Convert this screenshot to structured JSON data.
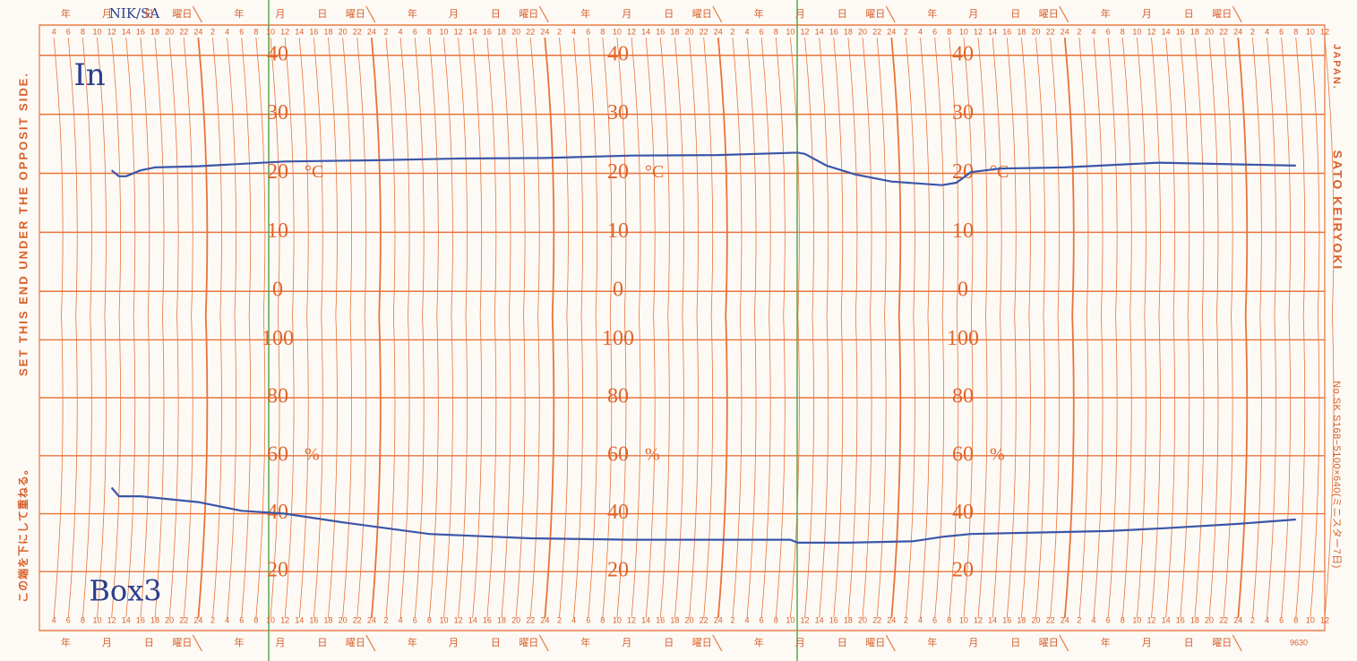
{
  "chart_data": [
    {
      "type": "line",
      "unit": "°C",
      "color": "#3b56a8",
      "ylim": [
        -3,
        43
      ],
      "yticks": [
        0,
        10,
        20,
        30,
        40
      ],
      "xlim": [
        2,
        180
      ],
      "xticks": [
        4,
        6,
        8,
        10,
        12,
        14,
        16,
        18,
        20,
        22,
        24,
        {
          "value": 26,
          "label": "2"
        },
        {
          "value": 28,
          "label": "4"
        },
        {
          "value": 30,
          "label": "6"
        },
        {
          "value": 32,
          "label": "8"
        },
        {
          "value": 34,
          "label": "10"
        },
        {
          "value": 36,
          "label": "12"
        },
        {
          "value": 38,
          "label": "14"
        },
        {
          "value": 40,
          "label": "16"
        },
        {
          "value": 42,
          "label": "18"
        },
        {
          "value": 44,
          "label": "20"
        },
        {
          "value": 46,
          "label": "22"
        },
        {
          "value": 48,
          "label": "24"
        },
        {
          "value": 50,
          "label": "2"
        },
        {
          "value": 52,
          "label": "4"
        },
        {
          "value": 54,
          "label": "6"
        },
        {
          "value": 56,
          "label": "8"
        },
        {
          "value": 58,
          "label": "10"
        },
        {
          "value": 60,
          "label": "12"
        },
        {
          "value": 62,
          "label": "14"
        },
        {
          "value": 64,
          "label": "16"
        },
        {
          "value": 66,
          "label": "18"
        },
        {
          "value": 68,
          "label": "20"
        },
        {
          "value": 70,
          "label": "22"
        },
        {
          "value": 72,
          "label": "24"
        },
        {
          "value": 74,
          "label": "2"
        },
        {
          "value": 76,
          "label": "4"
        },
        {
          "value": 78,
          "label": "6"
        },
        {
          "value": 80,
          "label": "8"
        },
        {
          "value": 82,
          "label": "10"
        },
        {
          "value": 84,
          "label": "12"
        },
        {
          "value": 86,
          "label": "14"
        },
        {
          "value": 88,
          "label": "16"
        },
        {
          "value": 90,
          "label": "18"
        },
        {
          "value": 92,
          "label": "20"
        },
        {
          "value": 94,
          "label": "22"
        },
        {
          "value": 96,
          "label": "24"
        },
        {
          "value": 98,
          "label": "2"
        },
        {
          "value": 100,
          "label": "4"
        },
        {
          "value": 102,
          "label": "6"
        },
        {
          "value": 104,
          "label": "8"
        },
        {
          "value": 106,
          "label": "10"
        },
        {
          "value": 108,
          "label": "12"
        },
        {
          "value": 110,
          "label": "14"
        },
        {
          "value": 112,
          "label": "16"
        },
        {
          "value": 114,
          "label": "18"
        },
        {
          "value": 116,
          "label": "20"
        },
        {
          "value": 118,
          "label": "22"
        },
        {
          "value": 120,
          "label": "24"
        },
        {
          "value": 122,
          "label": "2"
        },
        {
          "value": 124,
          "label": "4"
        },
        {
          "value": 126,
          "label": "6"
        },
        {
          "value": 128,
          "label": "8"
        },
        {
          "value": 130,
          "label": "10"
        },
        {
          "value": 132,
          "label": "12"
        },
        {
          "value": 134,
          "label": "14"
        },
        {
          "value": 136,
          "label": "16"
        },
        {
          "value": 138,
          "label": "18"
        },
        {
          "value": 140,
          "label": "20"
        },
        {
          "value": 142,
          "label": "22"
        },
        {
          "value": 144,
          "label": "24"
        },
        {
          "value": 146,
          "label": "2"
        },
        {
          "value": 148,
          "label": "4"
        },
        {
          "value": 150,
          "label": "6"
        },
        {
          "value": 152,
          "label": "8"
        },
        {
          "value": 154,
          "label": "10"
        },
        {
          "value": 156,
          "label": "12"
        },
        {
          "value": 158,
          "label": "14"
        },
        {
          "value": 160,
          "label": "16"
        },
        {
          "value": 162,
          "label": "18"
        },
        {
          "value": 164,
          "label": "20"
        },
        {
          "value": 166,
          "label": "22"
        },
        {
          "value": 168,
          "label": "24"
        },
        {
          "value": 170,
          "label": "2"
        },
        {
          "value": 172,
          "label": "4"
        },
        {
          "value": 174,
          "label": "6"
        },
        {
          "value": 176,
          "label": "8"
        },
        {
          "value": 178,
          "label": "10"
        },
        {
          "value": 180,
          "label": "12"
        }
      ],
      "x": [
        12,
        13,
        14,
        16,
        18,
        24,
        36,
        48,
        60,
        72,
        84,
        96,
        107,
        108,
        111,
        115,
        120,
        127,
        129,
        131,
        135,
        144,
        157,
        165,
        176
      ],
      "values": [
        20.5,
        19.5,
        19.5,
        20.5,
        21,
        21.2,
        22,
        22.2,
        22.5,
        22.6,
        23,
        23.1,
        23.5,
        23.3,
        21.3,
        19.8,
        18.6,
        18,
        18.4,
        20.2,
        20.8,
        21,
        21.8,
        21.6,
        21.3
      ]
    },
    {
      "type": "line",
      "unit": "%",
      "color": "#3b56a8",
      "ylim": [
        4,
        106
      ],
      "yticks": [
        20,
        40,
        60,
        80,
        100
      ],
      "xlim": [
        2,
        180
      ],
      "xticks": [
        4,
        6,
        8,
        10,
        12,
        14,
        16,
        18,
        20,
        22,
        24,
        {
          "value": 26,
          "label": "2"
        },
        {
          "value": 28,
          "label": "4"
        },
        {
          "value": 30,
          "label": "6"
        },
        {
          "value": 32,
          "label": "8"
        },
        {
          "value": 34,
          "label": "10"
        },
        {
          "value": 36,
          "label": "12"
        },
        {
          "value": 38,
          "label": "14"
        },
        {
          "value": 40,
          "label": "16"
        },
        {
          "value": 42,
          "label": "18"
        },
        {
          "value": 44,
          "label": "20"
        },
        {
          "value": 46,
          "label": "22"
        },
        {
          "value": 48,
          "label": "24"
        },
        {
          "value": 50,
          "label": "2"
        },
        {
          "value": 52,
          "label": "4"
        },
        {
          "value": 54,
          "label": "6"
        },
        {
          "value": 56,
          "label": "8"
        },
        {
          "value": 58,
          "label": "10"
        },
        {
          "value": 60,
          "label": "12"
        },
        {
          "value": 62,
          "label": "14"
        },
        {
          "value": 64,
          "label": "16"
        },
        {
          "value": 66,
          "label": "18"
        },
        {
          "value": 68,
          "label": "20"
        },
        {
          "value": 70,
          "label": "22"
        },
        {
          "value": 72,
          "label": "24"
        },
        {
          "value": 74,
          "label": "2"
        },
        {
          "value": 76,
          "label": "4"
        },
        {
          "value": 78,
          "label": "6"
        },
        {
          "value": 80,
          "label": "8"
        },
        {
          "value": 82,
          "label": "10"
        },
        {
          "value": 84,
          "label": "12"
        },
        {
          "value": 86,
          "label": "14"
        },
        {
          "value": 88,
          "label": "16"
        },
        {
          "value": 90,
          "label": "18"
        },
        {
          "value": 92,
          "label": "20"
        },
        {
          "value": 94,
          "label": "22"
        },
        {
          "value": 96,
          "label": "24"
        },
        {
          "value": 98,
          "label": "2"
        },
        {
          "value": 100,
          "label": "4"
        },
        {
          "value": 102,
          "label": "6"
        },
        {
          "value": 104,
          "label": "8"
        },
        {
          "value": 106,
          "label": "10"
        },
        {
          "value": 108,
          "label": "12"
        },
        {
          "value": 110,
          "label": "14"
        },
        {
          "value": 112,
          "label": "16"
        },
        {
          "value": 114,
          "label": "18"
        },
        {
          "value": 116,
          "label": "20"
        },
        {
          "value": 118,
          "label": "22"
        },
        {
          "value": 120,
          "label": "24"
        },
        {
          "value": 122,
          "label": "2"
        },
        {
          "value": 124,
          "label": "4"
        },
        {
          "value": 126,
          "label": "6"
        },
        {
          "value": 128,
          "label": "8"
        },
        {
          "value": 130,
          "label": "10"
        },
        {
          "value": 132,
          "label": "12"
        },
        {
          "value": 134,
          "label": "14"
        },
        {
          "value": 136,
          "label": "16"
        },
        {
          "value": 138,
          "label": "18"
        },
        {
          "value": 140,
          "label": "20"
        },
        {
          "value": 142,
          "label": "22"
        },
        {
          "value": 144,
          "label": "24"
        },
        {
          "value": 146,
          "label": "2"
        },
        {
          "value": 148,
          "label": "4"
        },
        {
          "value": 150,
          "label": "6"
        },
        {
          "value": 152,
          "label": "8"
        },
        {
          "value": 154,
          "label": "10"
        },
        {
          "value": 156,
          "label": "12"
        },
        {
          "value": 158,
          "label": "14"
        },
        {
          "value": 160,
          "label": "16"
        },
        {
          "value": 162,
          "label": "18"
        },
        {
          "value": 164,
          "label": "20"
        },
        {
          "value": 166,
          "label": "22"
        },
        {
          "value": 168,
          "label": "24"
        },
        {
          "value": 170,
          "label": "2"
        },
        {
          "value": 172,
          "label": "4"
        },
        {
          "value": 174,
          "label": "6"
        },
        {
          "value": 176,
          "label": "8"
        },
        {
          "value": 178,
          "label": "10"
        },
        {
          "value": 180,
          "label": "12"
        }
      ],
      "x": [
        12,
        13,
        16,
        24,
        30,
        36,
        44,
        56,
        70,
        84,
        96,
        106,
        107,
        114,
        123,
        127,
        131,
        140,
        150,
        158,
        168,
        176
      ],
      "values": [
        49,
        46,
        46,
        44,
        41,
        40,
        37,
        33,
        31.5,
        31,
        31,
        31,
        30,
        30,
        30.5,
        32,
        33,
        33.5,
        34,
        35,
        36.5,
        38
      ]
    }
  ],
  "day_header": [
    "年",
    "月",
    "日",
    "曜日"
  ],
  "left_text": "SET THIS END UNDER THE OPPOSIT SIDE.",
  "left_text_jp": "この端を下にして重ねる。",
  "maker": "SATO KEIRYOKI",
  "country": "JAPAN.",
  "model": "No.SK S168−5100×640(ミニスター7日)",
  "code": "9630",
  "annotations": [
    "In",
    "Box3",
    "NIK/SA"
  ]
}
